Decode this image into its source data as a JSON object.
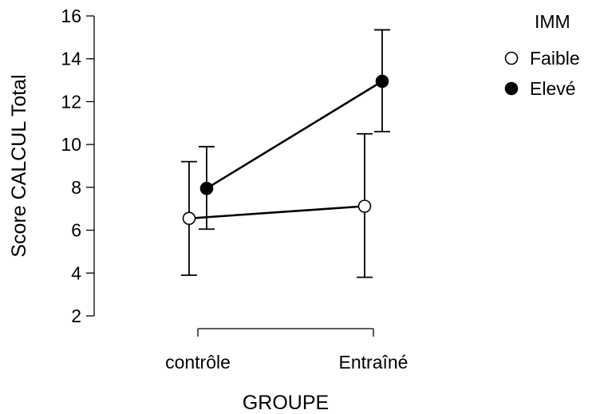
{
  "chart_data": {
    "type": "line",
    "xlabel": "GROUPE",
    "ylabel": "Score CALCUL Total",
    "categories": [
      "contrôle",
      "Entraîné"
    ],
    "ylim": [
      2,
      16
    ],
    "yticks": [
      2,
      4,
      6,
      8,
      10,
      12,
      14,
      16
    ],
    "grid": false,
    "legend": {
      "title": "IMM",
      "placement": "top-right"
    },
    "series": [
      {
        "name": "Faible",
        "marker": "open-circle",
        "values": [
          6.55,
          7.12
        ],
        "error_low": [
          3.9,
          3.8
        ],
        "error_high": [
          9.2,
          10.5
        ]
      },
      {
        "name": "Elevé",
        "marker": "filled-circle",
        "values": [
          7.95,
          12.95
        ],
        "error_low": [
          6.05,
          10.6
        ],
        "error_high": [
          9.9,
          15.35
        ]
      }
    ]
  },
  "colors": {
    "marker_stroke": "#000000",
    "open_fill": "#ffffff",
    "filled_fill": "#000000"
  }
}
